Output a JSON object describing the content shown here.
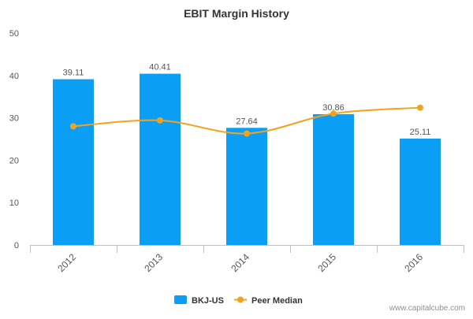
{
  "chart_data": {
    "type": "bar",
    "title": "EBIT Margin History",
    "categories": [
      "2012",
      "2013",
      "2014",
      "2015",
      "2016"
    ],
    "ylim": [
      0,
      50
    ],
    "yticks": [
      0,
      10,
      20,
      30,
      40,
      50
    ],
    "series": [
      {
        "name": "BKJ-US",
        "type": "bar",
        "color": "#0a9ff5",
        "values": [
          39.11,
          40.41,
          27.64,
          30.86,
          25.11
        ],
        "labels": [
          "39.11",
          "40.41",
          "27.64",
          "30.86",
          "25.11"
        ]
      },
      {
        "name": "Peer Median",
        "type": "line",
        "color": "#f5a21b",
        "values": [
          28.0,
          29.4,
          26.3,
          31.0,
          32.4
        ]
      }
    ],
    "xlabel": "",
    "ylabel": "",
    "grid": false,
    "legend_position": "bottom-center"
  },
  "watermark": "www.capitalcube.com"
}
